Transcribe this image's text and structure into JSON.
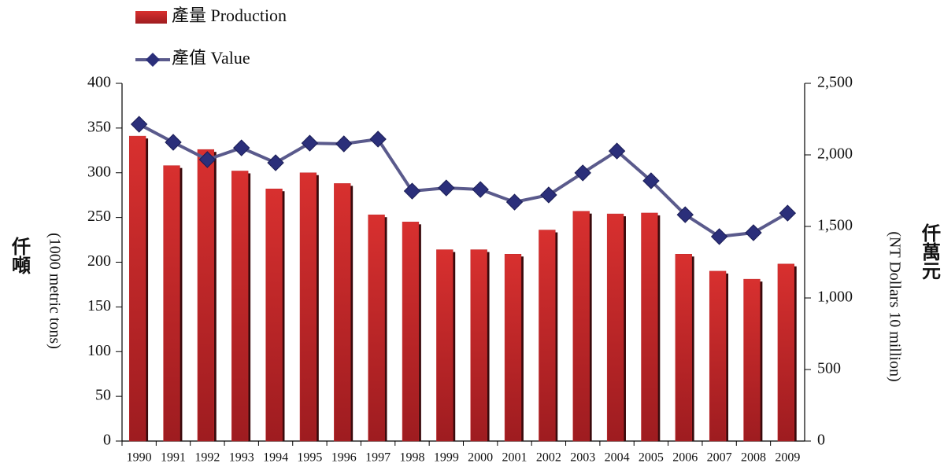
{
  "chart_data": {
    "type": "bar_line",
    "legend": "top-left",
    "y_label_cjk": "仟噸",
    "y_label": "(1000 metric tons)",
    "y2_label_cjk": "仟萬元",
    "y2_label": "(NT Dollars 10 million)",
    "categories": [
      "1990",
      "1991",
      "1992",
      "1993",
      "1994",
      "1995",
      "1996",
      "1997",
      "1998",
      "1999",
      "2000",
      "2001",
      "2002",
      "2003",
      "2004",
      "2005",
      "2006",
      "2007",
      "2008",
      "2009"
    ],
    "series": [
      {
        "name": "產量 Production",
        "type": "bar",
        "color": "#c0282a",
        "values": [
          341,
          308,
          326,
          302,
          282,
          300,
          288,
          253,
          245,
          214,
          214,
          209,
          236,
          257,
          254,
          255,
          209,
          190,
          181,
          198
        ]
      },
      {
        "name": "產值 Value",
        "type": "line",
        "axis": "y2",
        "color": "#5a5a8c",
        "marker_color": "#2b2f7a",
        "values": [
          2214,
          2088,
          1967,
          2049,
          1945,
          2082,
          2077,
          2110,
          1747,
          1769,
          1758,
          1670,
          1720,
          1874,
          2027,
          1819,
          1582,
          1429,
          1456,
          1593
        ]
      }
    ],
    "ylim": [
      0,
      400
    ],
    "yticks": [
      0,
      50,
      100,
      150,
      200,
      250,
      300,
      350,
      400
    ],
    "y2lim": [
      0,
      2500
    ],
    "y2ticks": [
      0,
      {
        "value": 500,
        "label": "500"
      },
      {
        "value": 1000,
        "label": "1,000"
      },
      {
        "value": 1500,
        "label": "1,500"
      },
      {
        "value": 2000,
        "label": "2,000"
      },
      {
        "value": 2500,
        "label": "2,500"
      }
    ]
  }
}
